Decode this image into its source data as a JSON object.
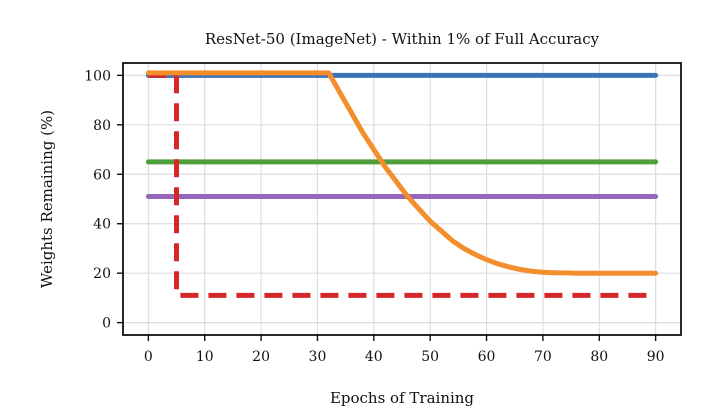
{
  "chart_data": {
    "type": "line",
    "title": "ResNet-50 (ImageNet) - Within 1% of Full Accuracy",
    "xlabel": "Epochs of Training",
    "ylabel": "Weights Remaining (%)",
    "xlim": [
      -4.5,
      94.5
    ],
    "ylim": [
      -5,
      105
    ],
    "xticks": [
      0,
      10,
      20,
      30,
      40,
      50,
      60,
      70,
      80,
      90
    ],
    "yticks": [
      0,
      20,
      40,
      60,
      80,
      100
    ],
    "grid": true,
    "series": [
      {
        "color": "#3b73b9",
        "style": "solid",
        "x": [
          0,
          90
        ],
        "y": [
          100,
          100
        ]
      },
      {
        "color": "#4f9f3c",
        "style": "solid",
        "x": [
          0,
          90
        ],
        "y": [
          65,
          65
        ]
      },
      {
        "color": "#9467bd",
        "style": "solid",
        "x": [
          0,
          90
        ],
        "y": [
          51,
          51
        ]
      },
      {
        "color": "#d62728",
        "style": "dashed",
        "x": [
          0,
          5,
          5,
          90
        ],
        "y": [
          100,
          100,
          11,
          11
        ]
      },
      {
        "color": "#f28e2b",
        "style": "solid",
        "x": [
          0,
          32,
          34,
          36,
          38,
          40,
          42,
          44,
          46,
          48,
          50,
          52,
          54,
          56,
          58,
          60,
          62,
          64,
          66,
          68,
          70,
          72,
          74,
          76,
          78,
          80,
          90
        ],
        "y": [
          101,
          101,
          93,
          85,
          77,
          70,
          63,
          57,
          51,
          46,
          41,
          37,
          33,
          30,
          27.5,
          25.5,
          23.8,
          22.5,
          21.5,
          20.8,
          20.4,
          20.2,
          20.1,
          20,
          20,
          20,
          20
        ]
      }
    ]
  }
}
